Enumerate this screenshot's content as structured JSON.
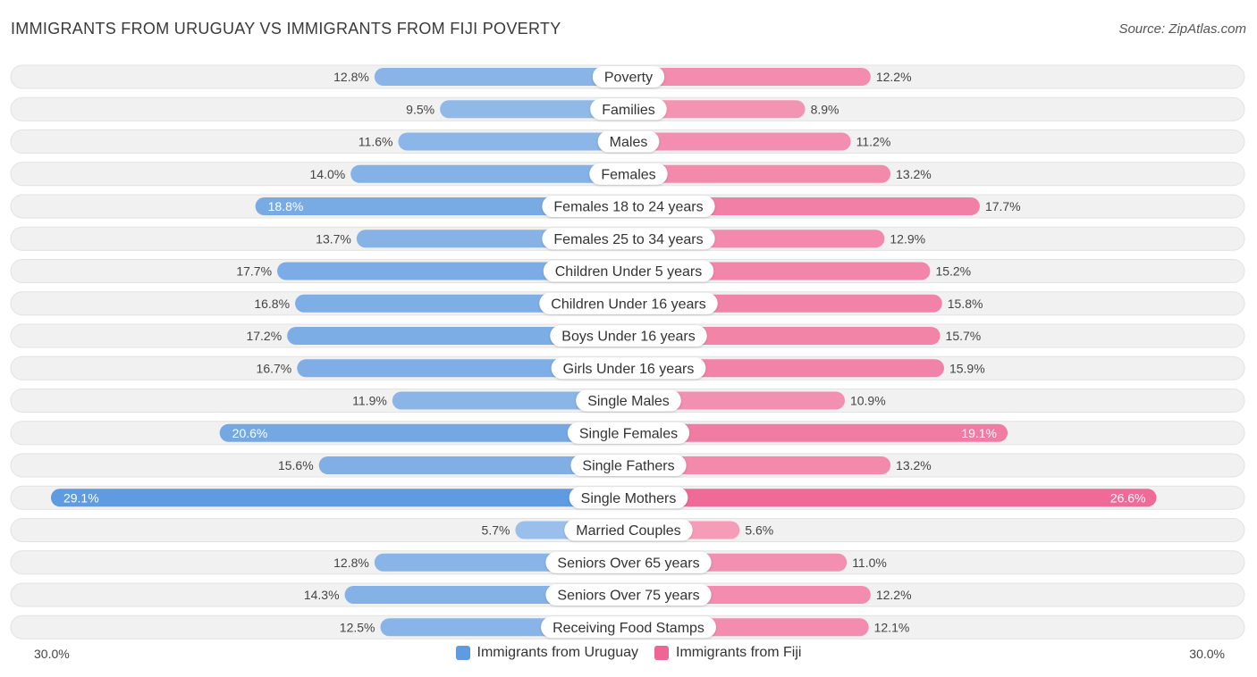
{
  "title": "IMMIGRANTS FROM URUGUAY VS IMMIGRANTS FROM FIJI POVERTY",
  "source": "Source: ZipAtlas.com",
  "axis": {
    "left_label": "30.0%",
    "right_label": "30.0%"
  },
  "legend": {
    "left": "Immigrants from Uruguay",
    "right": "Immigrants from Fiji"
  },
  "colors": {
    "left_light": "#a9c8ec",
    "left_dark": "#5f9be0",
    "right_light": "#f6a9c2",
    "right_dark": "#ef6593",
    "row_bg": "#f1f1f1",
    "row_border": "#e2e2e2"
  },
  "chart_data": {
    "type": "bar",
    "orientation": "horizontal-diverging",
    "title": "IMMIGRANTS FROM URUGUAY VS IMMIGRANTS FROM FIJI POVERTY",
    "xlim": [
      0,
      30
    ],
    "unit": "%",
    "categories": [
      "Poverty",
      "Families",
      "Males",
      "Females",
      "Females 18 to 24 years",
      "Females 25 to 34 years",
      "Children Under 5 years",
      "Children Under 16 years",
      "Boys Under 16 years",
      "Girls Under 16 years",
      "Single Males",
      "Single Females",
      "Single Fathers",
      "Single Mothers",
      "Married Couples",
      "Seniors Over 65 years",
      "Seniors Over 75 years",
      "Receiving Food Stamps"
    ],
    "series": [
      {
        "name": "Immigrants from Uruguay",
        "values": [
          12.8,
          9.5,
          11.6,
          14.0,
          18.8,
          13.7,
          17.7,
          16.8,
          17.2,
          16.7,
          11.9,
          20.6,
          15.6,
          29.1,
          5.7,
          12.8,
          14.3,
          12.5
        ],
        "labels": [
          "12.8%",
          "9.5%",
          "11.6%",
          "14.0%",
          "18.8%",
          "13.7%",
          "17.7%",
          "16.8%",
          "17.2%",
          "16.7%",
          "11.9%",
          "20.6%",
          "15.6%",
          "29.1%",
          "5.7%",
          "12.8%",
          "14.3%",
          "12.5%"
        ]
      },
      {
        "name": "Immigrants from Fiji",
        "values": [
          12.2,
          8.9,
          11.2,
          13.2,
          17.7,
          12.9,
          15.2,
          15.8,
          15.7,
          15.9,
          10.9,
          19.1,
          13.2,
          26.6,
          5.6,
          11.0,
          12.2,
          12.1
        ],
        "labels": [
          "12.2%",
          "8.9%",
          "11.2%",
          "13.2%",
          "17.7%",
          "12.9%",
          "15.2%",
          "15.8%",
          "15.7%",
          "15.9%",
          "10.9%",
          "19.1%",
          "13.2%",
          "26.6%",
          "5.6%",
          "11.0%",
          "12.2%",
          "12.1%"
        ]
      }
    ]
  }
}
